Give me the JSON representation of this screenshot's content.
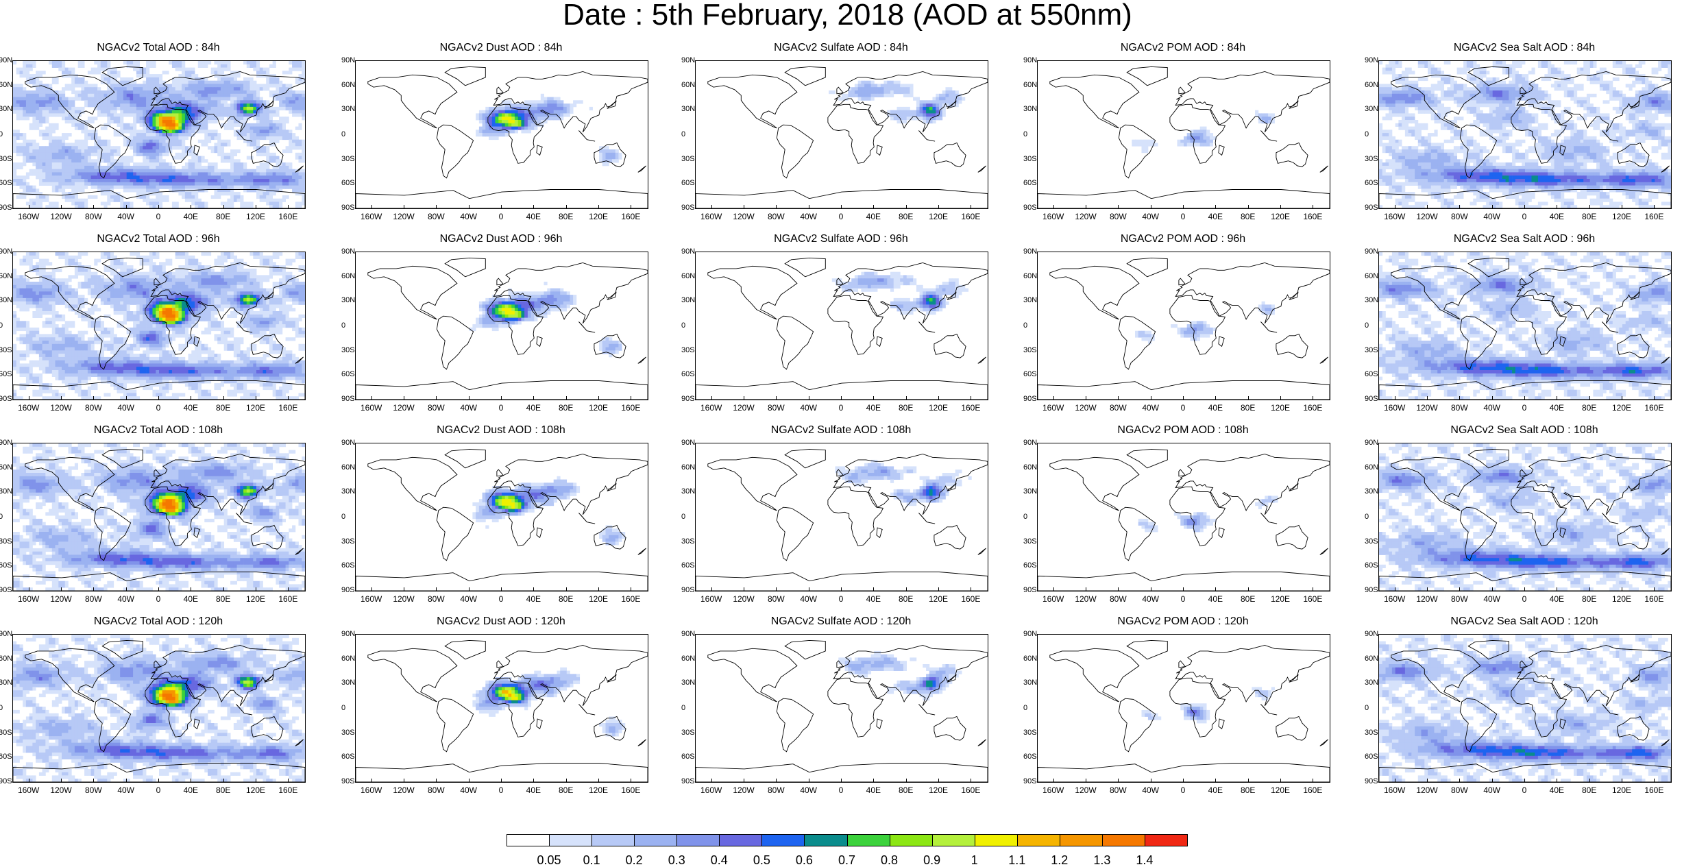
{
  "title": "Date : 5th February, 2018 (AOD at 550nm)",
  "lat_labels": [
    "90N",
    "60N",
    "30N",
    "0",
    "30S",
    "60S",
    "90S"
  ],
  "lon_labels": [
    "160W",
    "120W",
    "80W",
    "40W",
    "0",
    "40E",
    "80E",
    "120E",
    "160E"
  ],
  "panels": [
    {
      "title": "NGACv2 Total AOD : 84h",
      "species": "total"
    },
    {
      "title": "NGACv2 Dust AOD : 84h",
      "species": "dust"
    },
    {
      "title": "NGACv2 Sulfate AOD : 84h",
      "species": "sulfate"
    },
    {
      "title": "NGACv2 POM AOD : 84h",
      "species": "pom"
    },
    {
      "title": "NGACv2 Sea Salt AOD : 84h",
      "species": "seasalt"
    },
    {
      "title": "NGACv2 Total AOD : 96h",
      "species": "total"
    },
    {
      "title": "NGACv2 Dust AOD : 96h",
      "species": "dust"
    },
    {
      "title": "NGACv2 Sulfate AOD : 96h",
      "species": "sulfate"
    },
    {
      "title": "NGACv2 POM AOD : 96h",
      "species": "pom"
    },
    {
      "title": "NGACv2 Sea Salt AOD : 96h",
      "species": "seasalt"
    },
    {
      "title": "NGACv2 Total AOD : 108h",
      "species": "total"
    },
    {
      "title": "NGACv2 Dust AOD : 108h",
      "species": "dust"
    },
    {
      "title": "NGACv2 Sulfate AOD : 108h",
      "species": "sulfate"
    },
    {
      "title": "NGACv2 POM AOD : 108h",
      "species": "pom"
    },
    {
      "title": "NGACv2 Sea Salt AOD : 108h",
      "species": "seasalt"
    },
    {
      "title": "NGACv2 Total AOD : 120h",
      "species": "total"
    },
    {
      "title": "NGACv2 Dust AOD : 120h",
      "species": "dust"
    },
    {
      "title": "NGACv2 Sulfate AOD : 120h",
      "species": "sulfate"
    },
    {
      "title": "NGACv2 POM AOD : 120h",
      "species": "pom"
    },
    {
      "title": "NGACv2 Sea Salt  AOD : 120h",
      "species": "seasalt"
    }
  ],
  "colorbar": {
    "labels": [
      "0.05",
      "0.1",
      "0.2",
      "0.3",
      "0.4",
      "0.5",
      "0.6",
      "0.7",
      "0.8",
      "0.9",
      "1",
      "1.1",
      "1.2",
      "1.3",
      "1.4"
    ],
    "colors": [
      "#ffffff",
      "#d6e2fb",
      "#b7c9f6",
      "#9bb2f1",
      "#8093ea",
      "#6868e0",
      "#1e64f0",
      "#0a8c8c",
      "#3cd23c",
      "#8ce614",
      "#b4f03c",
      "#f0f000",
      "#f5b400",
      "#f59600",
      "#f57800",
      "#f02814"
    ]
  }
}
